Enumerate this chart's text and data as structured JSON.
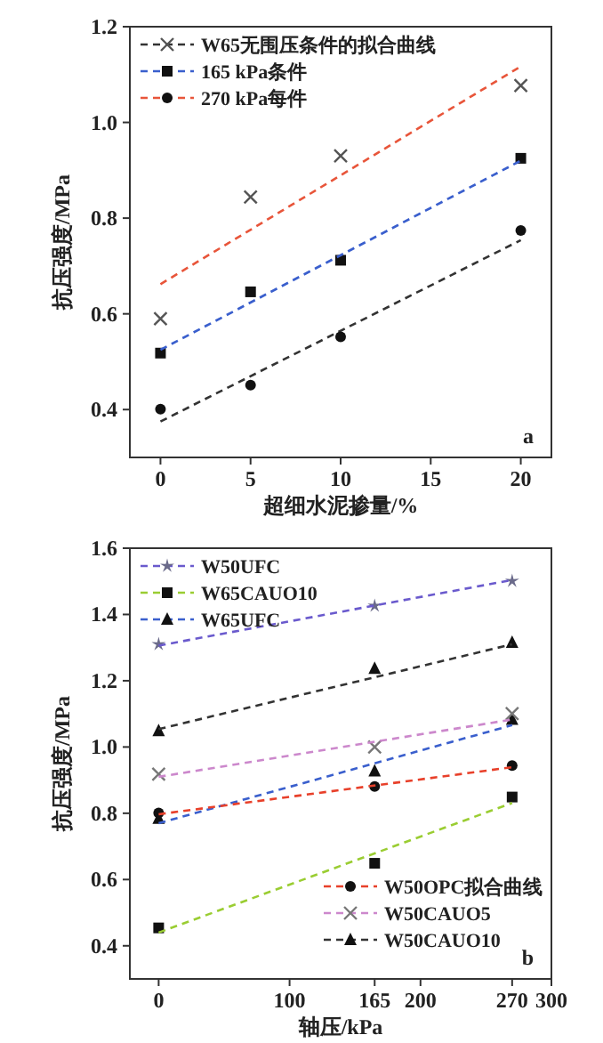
{
  "chart_data": [
    {
      "type": "line",
      "xlabel": "超细水泥掺量/%",
      "ylabel": "抗压强度/MPa",
      "xlim": [
        -1.7,
        21.7
      ],
      "ylim": [
        0.3,
        1.2
      ],
      "xticks": [
        0,
        5,
        10,
        15,
        20
      ],
      "yticks": [
        0.4,
        0.6,
        0.8,
        {
          "value": 1.0,
          "label": "1.0"
        },
        1.2
      ],
      "legend": "top left",
      "annotations": [
        "a"
      ],
      "series": [
        {
          "type": "scatter",
          "marker": "cross",
          "color": "#555555",
          "x": [
            0,
            5,
            10,
            20
          ],
          "values": [
            0.59,
            0.844,
            0.93,
            1.077
          ]
        },
        {
          "type": "line",
          "name": "W65无围压条件的拟合曲线",
          "color": "#333333",
          "line_style": "dashed",
          "x": [
            0,
            20
          ],
          "values": [
            0.375,
            0.754
          ]
        },
        {
          "type": "scatter",
          "marker": "square",
          "color": "#111111",
          "x": [
            0,
            5,
            10,
            20
          ],
          "values": [
            0.518,
            0.646,
            0.712,
            0.925
          ]
        },
        {
          "type": "line",
          "name": "165 kPa条件",
          "color": "#3a5fcd",
          "line_style": "dashed",
          "x": [
            0,
            20
          ],
          "values": [
            0.525,
            0.92
          ]
        },
        {
          "type": "scatter",
          "marker": "circle",
          "color": "#111111",
          "x": [
            0,
            5,
            10,
            20
          ],
          "values": [
            0.401,
            0.451,
            0.552,
            0.774
          ]
        },
        {
          "type": "line",
          "name": "270 kPa每件",
          "color": "#e8553a",
          "line_style": "dashed",
          "x": [
            0,
            20
          ],
          "values": [
            0.662,
            1.117
          ]
        }
      ]
    },
    {
      "type": "line",
      "xlabel": "轴压/kPa",
      "ylabel": "抗压强度/MPa",
      "xlim": [
        -22,
        300
      ],
      "ylim": [
        0.3,
        1.6
      ],
      "xticks": [
        0,
        100,
        165,
        200,
        270,
        300
      ],
      "yticks": [
        0.4,
        0.6,
        0.8,
        {
          "value": 1.0,
          "label": "1.0"
        },
        1.2,
        1.4,
        1.6
      ],
      "legend": "top left",
      "annotations": [
        "b"
      ],
      "series": [
        {
          "type": "scatter",
          "marker": "star",
          "color": "#6a6a8a",
          "x": [
            0,
            165,
            270
          ],
          "values": [
            1.31,
            1.426,
            1.501
          ]
        },
        {
          "type": "line",
          "name": "W50UFC",
          "color": "#6a5acd",
          "line_style": "dashed",
          "x": [
            0,
            270
          ],
          "values": [
            1.306,
            1.504
          ]
        },
        {
          "type": "scatter",
          "marker": "square",
          "color": "#111111",
          "x": [
            0,
            165,
            270
          ],
          "values": [
            0.454,
            0.649,
            0.849
          ]
        },
        {
          "type": "line",
          "name": "W65CAUO10",
          "color": "#9acd32",
          "line_style": "dashed",
          "x": [
            0,
            270
          ],
          "values": [
            0.44,
            0.831
          ]
        },
        {
          "type": "scatter",
          "marker": "triangle",
          "color": "#111111",
          "x": [
            0,
            165,
            270
          ],
          "values": [
            0.784,
            0.927,
            1.083
          ]
        },
        {
          "type": "line",
          "name": "W65UFC",
          "color": "#3a5fcd",
          "line_style": "dashed",
          "x": [
            0,
            270
          ],
          "values": [
            0.77,
            1.066
          ]
        },
        {
          "type": "scatter",
          "marker": "circle",
          "color": "#111111",
          "x": [
            0,
            165,
            270
          ],
          "values": [
            0.801,
            0.881,
            0.944
          ]
        },
        {
          "type": "line",
          "name": "W50OPC拟合曲线",
          "color": "#e8402a",
          "line_style": "dashed",
          "x": [
            0,
            270
          ],
          "values": [
            0.797,
            0.939
          ]
        },
        {
          "type": "scatter",
          "marker": "cross",
          "color": "#777777",
          "x": [
            0,
            165,
            270
          ],
          "values": [
            0.918,
            1.0,
            1.101
          ]
        },
        {
          "type": "line",
          "name": "W50CAUO5",
          "color": "#cc88cc",
          "line_style": "dashed",
          "x": [
            0,
            270
          ],
          "values": [
            0.91,
            1.083
          ]
        },
        {
          "type": "scatter",
          "marker": "triangle",
          "color": "#111111",
          "x": [
            0,
            165,
            270
          ],
          "values": [
            1.049,
            1.237,
            1.315
          ]
        },
        {
          "type": "line",
          "name": "W50CAUO10",
          "color": "#333333",
          "line_style": "dashed",
          "x": [
            0,
            270
          ],
          "values": [
            1.054,
            1.31
          ]
        }
      ]
    }
  ]
}
